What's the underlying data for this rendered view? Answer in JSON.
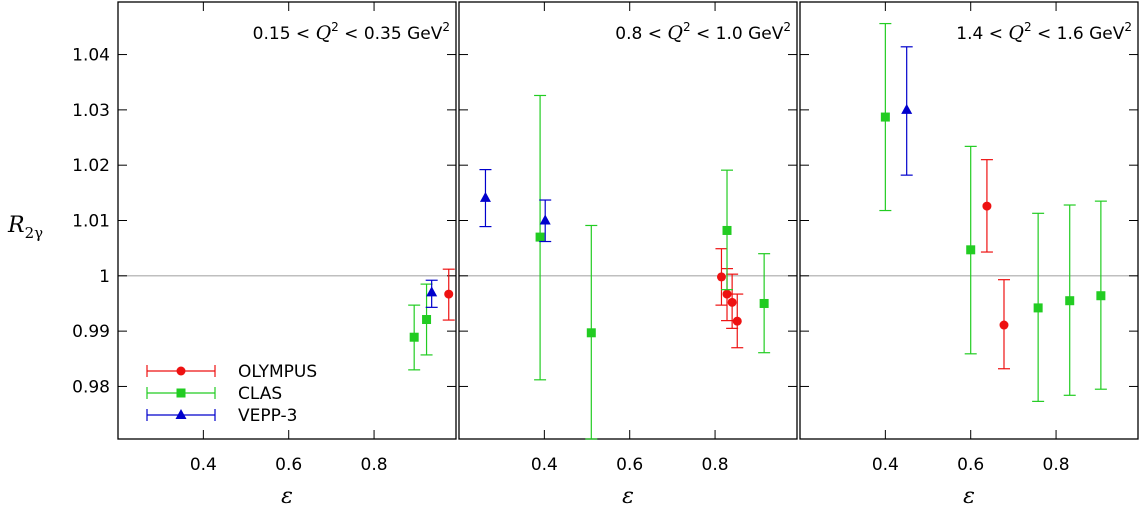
{
  "chart_data": {
    "type": "scatter",
    "ylabel": "R",
    "ylabel_sub": "2γ",
    "xlabel": "ε",
    "ylim": [
      0.9705,
      1.0495
    ],
    "yticks": [
      {
        "v": 0.98,
        "label": "0.98"
      },
      {
        "v": 0.99,
        "label": "0.99"
      },
      {
        "v": 1.0,
        "label": "1"
      },
      {
        "v": 1.01,
        "label": "1.01"
      },
      {
        "v": 1.02,
        "label": "1.02"
      },
      {
        "v": 1.03,
        "label": "1.03"
      },
      {
        "v": 1.04,
        "label": "1.04"
      }
    ],
    "reference_line": 1.0,
    "colors": {
      "OLYMPUS": "#ee1111",
      "CLAS": "#22cc22",
      "VEPP-3": "#0000cc",
      "reference": "#aaaaaa"
    },
    "legend": {
      "placement": "bottom-left of first panel",
      "entries": [
        {
          "name": "OLYMPUS",
          "marker": "circle"
        },
        {
          "name": "CLAS",
          "marker": "square"
        },
        {
          "name": "VEPP-3",
          "marker": "triangle"
        }
      ]
    },
    "panels": [
      {
        "label_prefix": "0.15 < ",
        "label_var": "Q",
        "label_sup": "2",
        "label_mid": " < 0.35 GeV",
        "label_sup2": "2",
        "xlim": [
          0.2,
          0.992
        ],
        "xticks": [
          {
            "v": 0.4,
            "label": "0.4"
          },
          {
            "v": 0.6,
            "label": "0.6"
          },
          {
            "v": 0.8,
            "label": "0.8"
          }
        ],
        "series": [
          {
            "name": "OLYMPUS",
            "points": [
              {
                "x": 0.975,
                "y": 0.9967,
                "lo": 0.992,
                "hi": 1.0012
              }
            ]
          },
          {
            "name": "CLAS",
            "points": [
              {
                "x": 0.894,
                "y": 0.9889,
                "lo": 0.983,
                "hi": 0.9947
              },
              {
                "x": 0.923,
                "y": 0.9921,
                "lo": 0.9857,
                "hi": 0.9985
              }
            ]
          },
          {
            "name": "VEPP-3",
            "points": [
              {
                "x": 0.935,
                "y": 0.997,
                "lo": 0.9943,
                "hi": 0.9992
              }
            ]
          }
        ]
      },
      {
        "label_prefix": "0.8 < ",
        "label_var": "Q",
        "label_sup": "2",
        "label_mid": " < 1.0 GeV",
        "label_sup2": "2",
        "xlim": [
          0.2,
          0.992
        ],
        "xticks": [
          {
            "v": 0.4,
            "label": "0.4"
          },
          {
            "v": 0.6,
            "label": "0.6"
          },
          {
            "v": 0.8,
            "label": "0.8"
          }
        ],
        "series": [
          {
            "name": "OLYMPUS",
            "points": [
              {
                "x": 0.815,
                "y": 0.9998,
                "lo": 0.9947,
                "hi": 1.0049
              },
              {
                "x": 0.828,
                "y": 0.9967,
                "lo": 0.9919,
                "hi": 1.0013
              },
              {
                "x": 0.84,
                "y": 0.9952,
                "lo": 0.9905,
                "hi": 1.0003
              },
              {
                "x": 0.852,
                "y": 0.9918,
                "lo": 0.987,
                "hi": 0.9967
              }
            ]
          },
          {
            "name": "CLAS",
            "points": [
              {
                "x": 0.39,
                "y": 1.007,
                "lo": 0.9812,
                "hi": 1.0326
              },
              {
                "x": 0.51,
                "y": 0.9897,
                "lo": 0.9705,
                "hi": 1.0091
              },
              {
                "x": 0.828,
                "y": 1.0082,
                "lo": 0.9975,
                "hi": 1.0191
              },
              {
                "x": 0.915,
                "y": 0.995,
                "lo": 0.9861,
                "hi": 1.004
              }
            ]
          },
          {
            "name": "VEPP-3",
            "points": [
              {
                "x": 0.262,
                "y": 1.0141,
                "lo": 1.0089,
                "hi": 1.0192
              },
              {
                "x": 0.402,
                "y": 1.01,
                "lo": 1.0062,
                "hi": 1.0137
              }
            ]
          }
        ]
      },
      {
        "label_prefix": "1.4 < ",
        "label_var": "Q",
        "label_sup": "2",
        "label_mid": " < 1.6 GeV",
        "label_sup2": "2",
        "xlim": [
          0.2,
          0.992
        ],
        "xticks": [
          {
            "v": 0.4,
            "label": "0.4"
          },
          {
            "v": 0.6,
            "label": "0.6"
          },
          {
            "v": 0.8,
            "label": "0.8"
          }
        ],
        "series": [
          {
            "name": "OLYMPUS",
            "points": [
              {
                "x": 0.638,
                "y": 1.0126,
                "lo": 1.0043,
                "hi": 1.021
              },
              {
                "x": 0.678,
                "y": 0.9911,
                "lo": 0.9832,
                "hi": 0.9993
              }
            ]
          },
          {
            "name": "CLAS",
            "points": [
              {
                "x": 0.4,
                "y": 1.0287,
                "lo": 1.0118,
                "hi": 1.0456
              },
              {
                "x": 0.6,
                "y": 1.0047,
                "lo": 0.9859,
                "hi": 1.0234
              },
              {
                "x": 0.758,
                "y": 0.9942,
                "lo": 0.9773,
                "hi": 1.0113
              },
              {
                "x": 0.832,
                "y": 0.9955,
                "lo": 0.9784,
                "hi": 1.0128
              },
              {
                "x": 0.905,
                "y": 0.9964,
                "lo": 0.9795,
                "hi": 1.0135
              }
            ]
          },
          {
            "name": "VEPP-3",
            "points": [
              {
                "x": 0.45,
                "y": 1.03,
                "lo": 1.0182,
                "hi": 1.0414
              }
            ]
          }
        ]
      }
    ]
  }
}
